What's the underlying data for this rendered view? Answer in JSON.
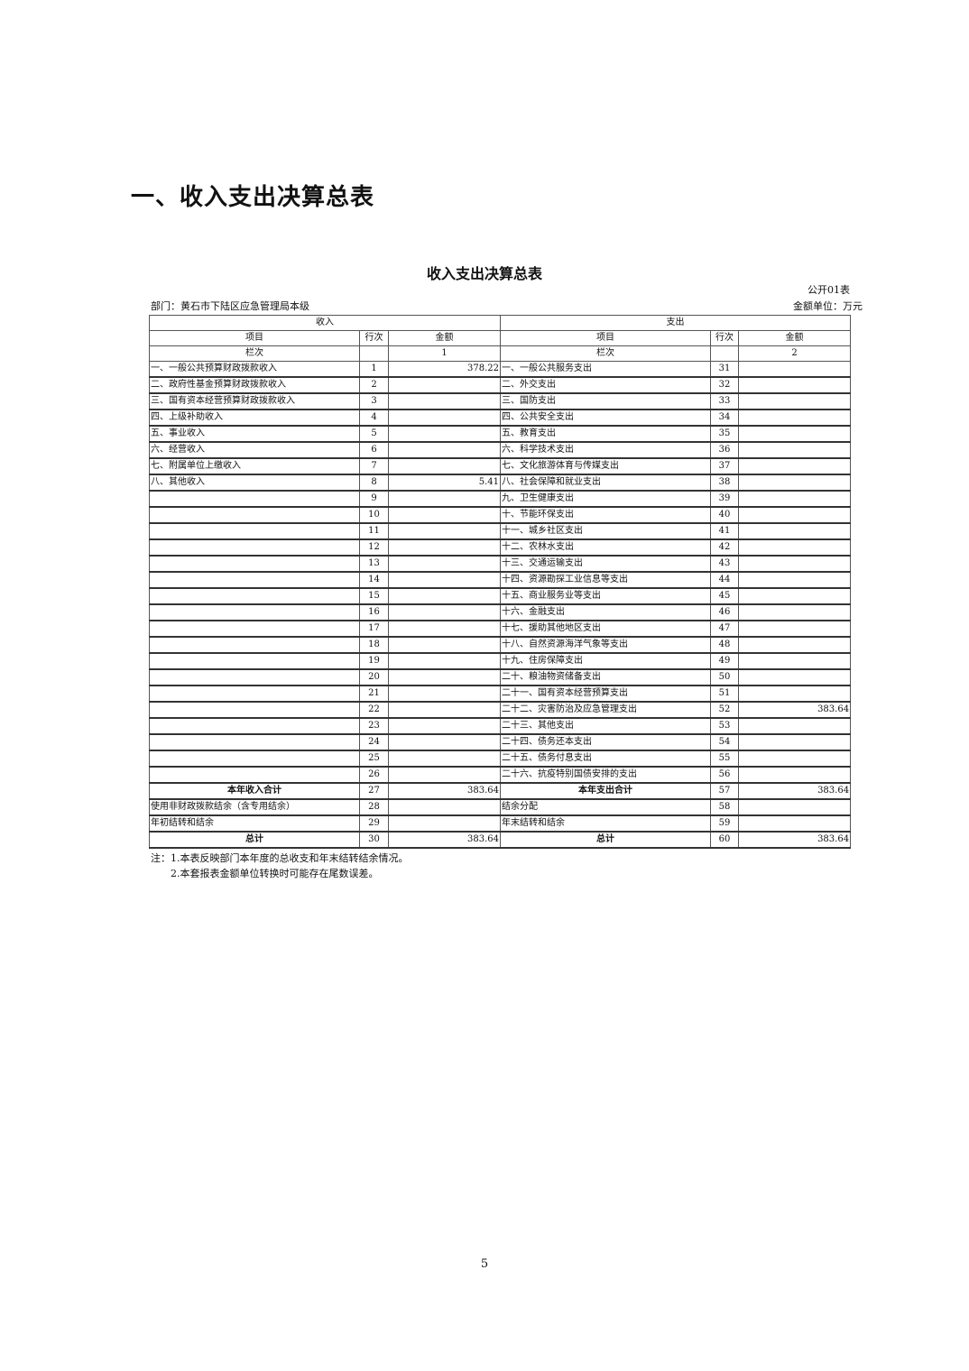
{
  "heading": "一、收入支出决算总表",
  "table_title": "收入支出决算总表",
  "table_code": "公开01表",
  "department": "部门：黄石市下陆区应急管理局本级",
  "unit": "金额单位：万元",
  "header": {
    "income": "收入",
    "expense": "支出",
    "item": "项目",
    "row_no": "行次",
    "amount": "金额",
    "col_label": "栏次",
    "col1": "1",
    "col2": "2"
  },
  "rows": [
    {
      "li": "一、一般公共预算财政拨款收入",
      "ln": "1",
      "la": "378.22",
      "ri": "一、一般公共服务支出",
      "rn": "31",
      "ra": ""
    },
    {
      "li": "二、政府性基金预算财政拨款收入",
      "ln": "2",
      "la": "",
      "ri": "二、外交支出",
      "rn": "32",
      "ra": ""
    },
    {
      "li": "三、国有资本经营预算财政拨款收入",
      "ln": "3",
      "la": "",
      "ri": "三、国防支出",
      "rn": "33",
      "ra": ""
    },
    {
      "li": "四、上级补助收入",
      "ln": "4",
      "la": "",
      "ri": "四、公共安全支出",
      "rn": "34",
      "ra": ""
    },
    {
      "li": "五、事业收入",
      "ln": "5",
      "la": "",
      "ri": "五、教育支出",
      "rn": "35",
      "ra": ""
    },
    {
      "li": "六、经营收入",
      "ln": "6",
      "la": "",
      "ri": "六、科学技术支出",
      "rn": "36",
      "ra": ""
    },
    {
      "li": "七、附属单位上缴收入",
      "ln": "7",
      "la": "",
      "ri": "七、文化旅游体育与传媒支出",
      "rn": "37",
      "ra": ""
    },
    {
      "li": "八、其他收入",
      "ln": "8",
      "la": "5.41",
      "ri": "八、社会保障和就业支出",
      "rn": "38",
      "ra": ""
    },
    {
      "li": "",
      "ln": "9",
      "la": "",
      "ri": "九、卫生健康支出",
      "rn": "39",
      "ra": ""
    },
    {
      "li": "",
      "ln": "10",
      "la": "",
      "ri": "十、节能环保支出",
      "rn": "40",
      "ra": ""
    },
    {
      "li": "",
      "ln": "11",
      "la": "",
      "ri": "十一、城乡社区支出",
      "rn": "41",
      "ra": ""
    },
    {
      "li": "",
      "ln": "12",
      "la": "",
      "ri": "十二、农林水支出",
      "rn": "42",
      "ra": ""
    },
    {
      "li": "",
      "ln": "13",
      "la": "",
      "ri": "十三、交通运输支出",
      "rn": "43",
      "ra": ""
    },
    {
      "li": "",
      "ln": "14",
      "la": "",
      "ri": "十四、资源勘探工业信息等支出",
      "rn": "44",
      "ra": ""
    },
    {
      "li": "",
      "ln": "15",
      "la": "",
      "ri": "十五、商业服务业等支出",
      "rn": "45",
      "ra": ""
    },
    {
      "li": "",
      "ln": "16",
      "la": "",
      "ri": "十六、金融支出",
      "rn": "46",
      "ra": ""
    },
    {
      "li": "",
      "ln": "17",
      "la": "",
      "ri": "十七、援助其他地区支出",
      "rn": "47",
      "ra": ""
    },
    {
      "li": "",
      "ln": "18",
      "la": "",
      "ri": "十八、自然资源海洋气象等支出",
      "rn": "48",
      "ra": ""
    },
    {
      "li": "",
      "ln": "19",
      "la": "",
      "ri": "十九、住房保障支出",
      "rn": "49",
      "ra": ""
    },
    {
      "li": "",
      "ln": "20",
      "la": "",
      "ri": "二十、粮油物资储备支出",
      "rn": "50",
      "ra": ""
    },
    {
      "li": "",
      "ln": "21",
      "la": "",
      "ri": "二十一、国有资本经营预算支出",
      "rn": "51",
      "ra": ""
    },
    {
      "li": "",
      "ln": "22",
      "la": "",
      "ri": "二十二、灾害防治及应急管理支出",
      "rn": "52",
      "ra": "383.64"
    },
    {
      "li": "",
      "ln": "23",
      "la": "",
      "ri": "二十三、其他支出",
      "rn": "53",
      "ra": ""
    },
    {
      "li": "",
      "ln": "24",
      "la": "",
      "ri": "二十四、债务还本支出",
      "rn": "54",
      "ra": ""
    },
    {
      "li": "",
      "ln": "25",
      "la": "",
      "ri": "二十五、债务付息支出",
      "rn": "55",
      "ra": ""
    },
    {
      "li": "",
      "ln": "26",
      "la": "",
      "ri": "二十六、抗疫特别国债安排的支出",
      "rn": "56",
      "ra": ""
    },
    {
      "li": "本年收入合计",
      "ln": "27",
      "la": "383.64",
      "ri": "本年支出合计",
      "rn": "57",
      "ra": "383.64",
      "bold": true
    },
    {
      "li": "使用非财政拨款结余（含专用结余）",
      "ln": "28",
      "la": "",
      "ri": "结余分配",
      "rn": "58",
      "ra": ""
    },
    {
      "li": "年初结转和结余",
      "ln": "29",
      "la": "",
      "ri": "年末结转和结余",
      "rn": "59",
      "ra": ""
    },
    {
      "li": "总计",
      "ln": "30",
      "la": "383.64",
      "ri": "总计",
      "rn": "60",
      "ra": "383.64",
      "bold": true
    }
  ],
  "notes": [
    "注：1.本表反映部门本年度的总收支和年末结转结余情况。",
    "2.本套报表金额单位转换时可能存在尾数误差。"
  ],
  "page_number": "5"
}
